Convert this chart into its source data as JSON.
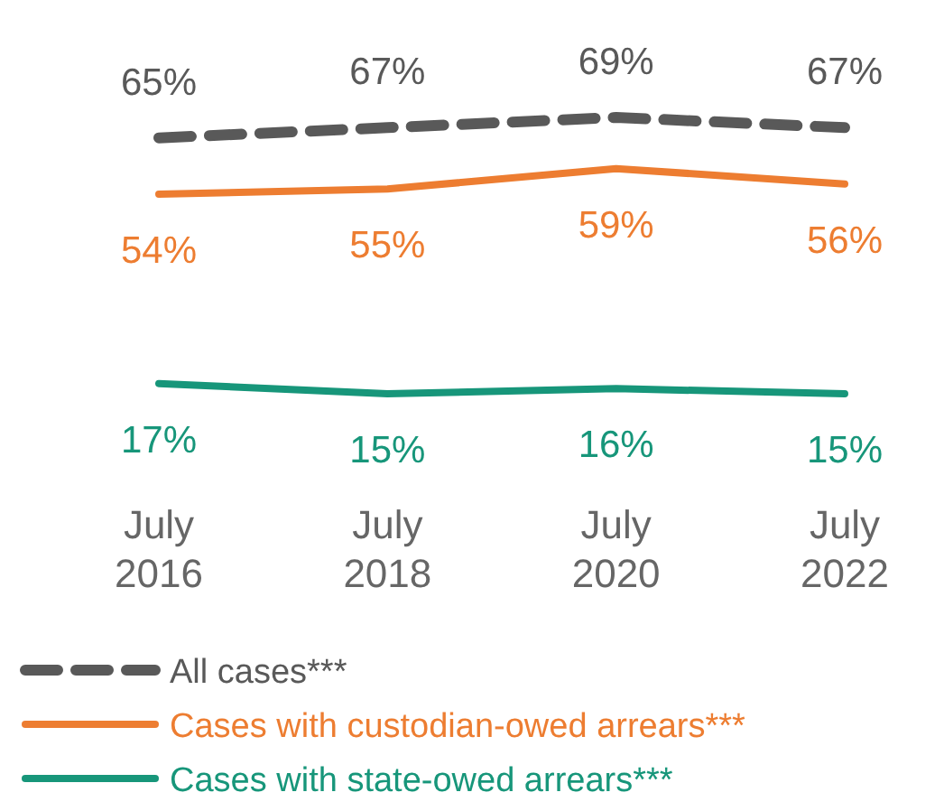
{
  "chart_data": {
    "type": "line",
    "categories": [
      "July\n2016",
      "July\n2018",
      "July\n2020",
      "July\n2022"
    ],
    "tick_labels": "x",
    "legend": "bottom left",
    "series": [
      {
        "name": "All cases***",
        "color": "#595959",
        "line_style": "dashed",
        "values": [
          65,
          67,
          69,
          67
        ],
        "value_labels": [
          "65%",
          "67%",
          "69%",
          "67%"
        ]
      },
      {
        "name": "Cases with custodian-owed arrears***",
        "color": "#ed7d31",
        "line_style": "solid",
        "values": [
          54,
          55,
          59,
          56
        ],
        "value_labels": [
          "54%",
          "55%",
          "59%",
          "56%"
        ]
      },
      {
        "name": "Cases with state-owed arrears***",
        "color": "#17967a",
        "line_style": "solid",
        "values": [
          17,
          15,
          16,
          15
        ],
        "value_labels": [
          "17%",
          "15%",
          "16%",
          "15%"
        ]
      }
    ]
  }
}
